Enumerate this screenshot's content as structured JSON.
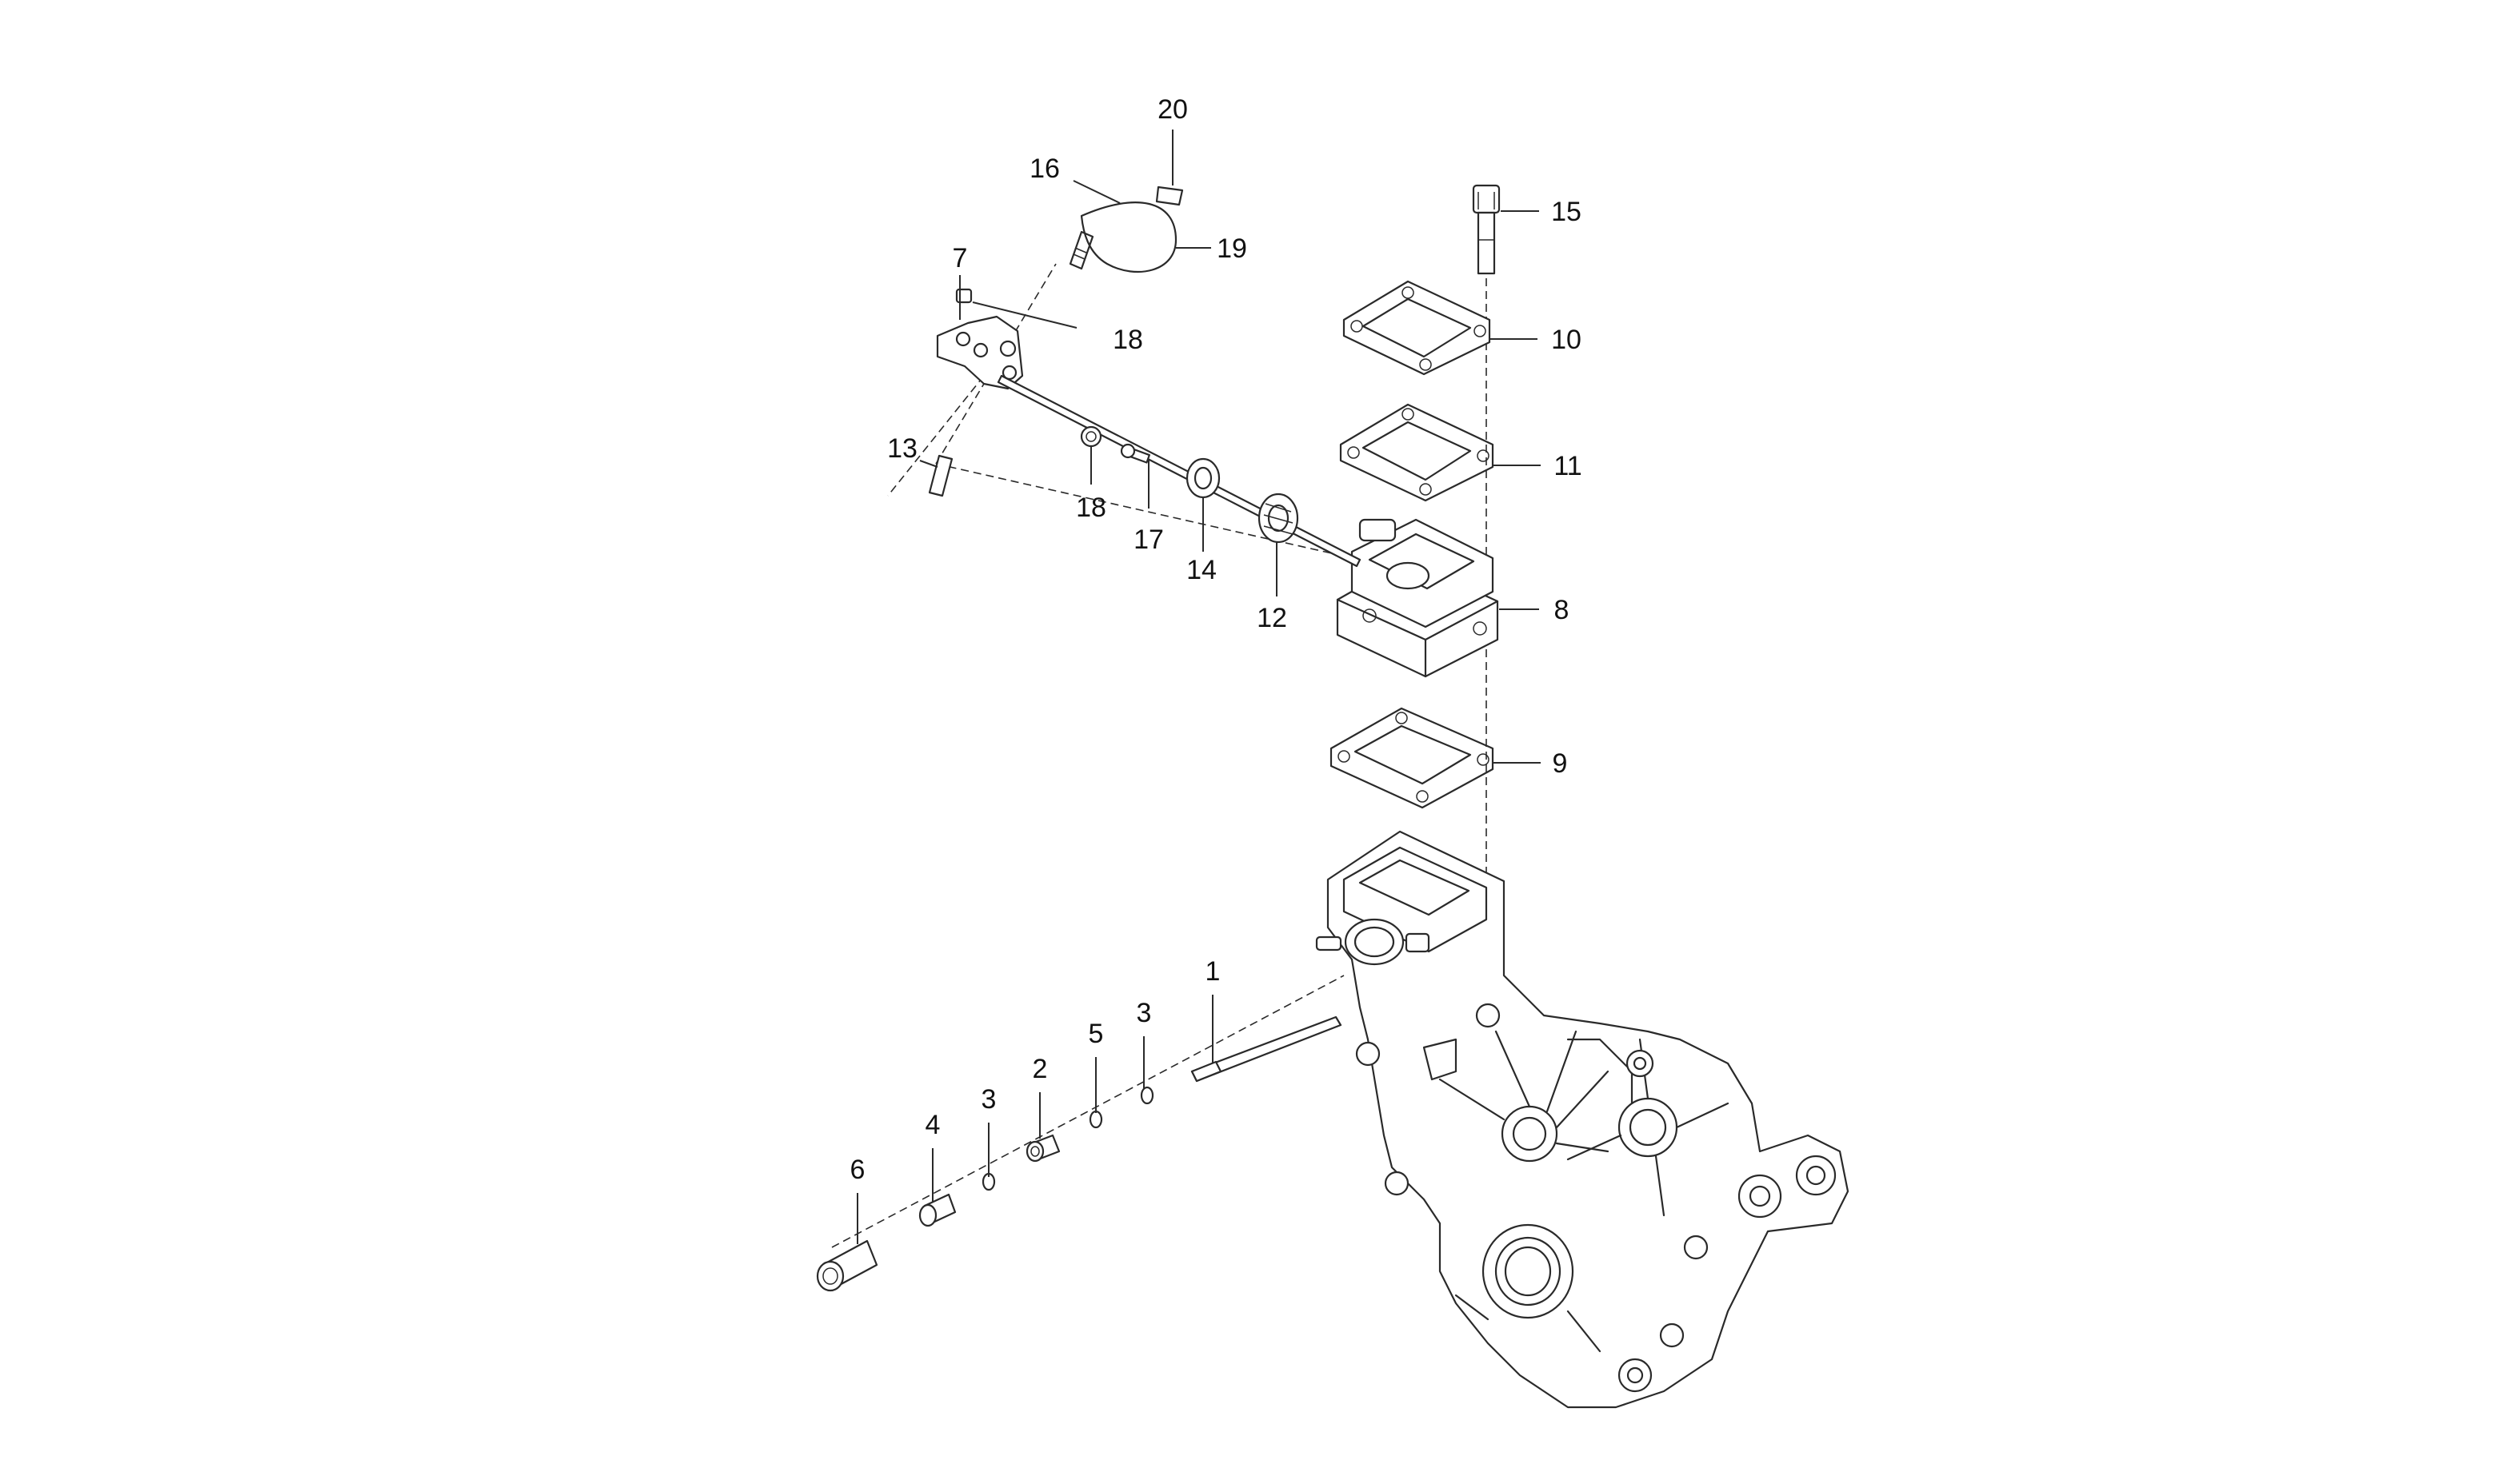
{
  "callouts": [
    {
      "id": "c1",
      "label": "1"
    },
    {
      "id": "c2",
      "label": "2"
    },
    {
      "id": "c3a",
      "label": "3"
    },
    {
      "id": "c3b",
      "label": "3"
    },
    {
      "id": "c4",
      "label": "4"
    },
    {
      "id": "c5",
      "label": "5"
    },
    {
      "id": "c6",
      "label": "6"
    },
    {
      "id": "c7",
      "label": "7"
    },
    {
      "id": "c8",
      "label": "8"
    },
    {
      "id": "c9",
      "label": "9"
    },
    {
      "id": "c10",
      "label": "10"
    },
    {
      "id": "c11",
      "label": "11"
    },
    {
      "id": "c12",
      "label": "12"
    },
    {
      "id": "c13",
      "label": "13"
    },
    {
      "id": "c14",
      "label": "14"
    },
    {
      "id": "c15",
      "label": "15"
    },
    {
      "id": "c16",
      "label": "16"
    },
    {
      "id": "c17",
      "label": "17"
    },
    {
      "id": "c18a",
      "label": "18"
    },
    {
      "id": "c18b",
      "label": "18"
    },
    {
      "id": "c19",
      "label": "19"
    },
    {
      "id": "c20",
      "label": "20"
    }
  ]
}
